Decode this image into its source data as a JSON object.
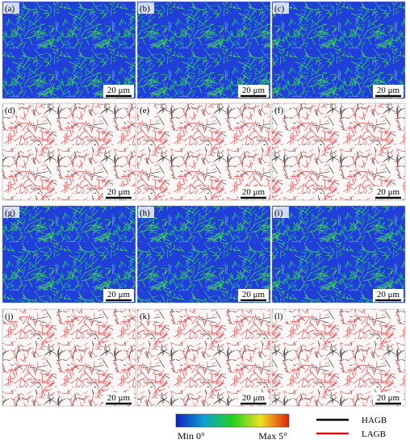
{
  "panels": [
    {
      "label": "(a)",
      "scale_bar": "20 μm"
    },
    {
      "label": "(b)",
      "scale_bar": "20 μm"
    },
    {
      "label": "(c)",
      "scale_bar": "20 μm"
    },
    {
      "label": "(d)",
      "scale_bar": "20 μm"
    },
    {
      "label": "(e)",
      "scale_bar": "20 μm"
    },
    {
      "label": "(f)",
      "scale_bar": "20 μm"
    },
    {
      "label": "(g)",
      "scale_bar": "20 μm"
    },
    {
      "label": "(h)",
      "scale_bar": "20 μm"
    },
    {
      "label": "(i)",
      "scale_bar": "20 μm"
    },
    {
      "label": "(j)",
      "scale_bar": "20 μm"
    },
    {
      "label": "(k)",
      "scale_bar": "20 μm"
    },
    {
      "label": "(l)",
      "scale_bar": "20 μm"
    }
  ],
  "colorbar": {
    "min_label": "Min 0°",
    "max_label": "Max 5°"
  },
  "legend": {
    "items": [
      "HAGB",
      "LAGB"
    ]
  }
}
